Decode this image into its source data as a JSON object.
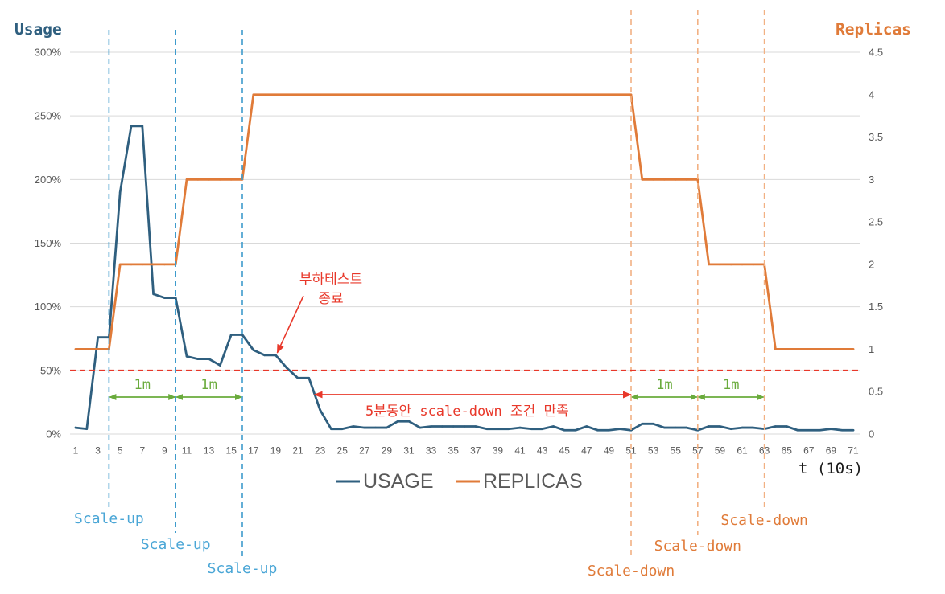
{
  "chart_data": {
    "type": "line",
    "grid": "horizontal",
    "legend": "bottom-center",
    "x_axis": {
      "label": "t (10s)",
      "range": [
        1,
        71
      ],
      "tick_labels": [
        "1",
        "3",
        "5",
        "7",
        "9",
        "11",
        "13",
        "15",
        "17",
        "19",
        "21",
        "23",
        "25",
        "27",
        "29",
        "31",
        "33",
        "35",
        "37",
        "39",
        "41",
        "43",
        "45",
        "47",
        "49",
        "51",
        "53",
        "55",
        "57",
        "59",
        "61",
        "63",
        "65",
        "67",
        "69",
        "71"
      ]
    },
    "left_axis": {
      "title": "Usage",
      "range": [
        0,
        300
      ],
      "tick_labels": [
        "0%",
        "50%",
        "100%",
        "150%",
        "200%",
        "250%",
        "300%"
      ],
      "color": "#2F5F7F"
    },
    "right_axis": {
      "title": "Replicas",
      "range": [
        0,
        4.5
      ],
      "tick_labels": [
        "0",
        "0.5",
        "1",
        "1.5",
        "2",
        "2.5",
        "3",
        "3.5",
        "4",
        "4.5"
      ],
      "color": "#E07B39"
    },
    "x": [
      1,
      2,
      3,
      4,
      5,
      6,
      7,
      8,
      9,
      10,
      11,
      12,
      13,
      14,
      15,
      16,
      17,
      18,
      19,
      20,
      21,
      22,
      23,
      24,
      25,
      26,
      27,
      28,
      29,
      30,
      31,
      32,
      33,
      34,
      35,
      36,
      37,
      38,
      39,
      40,
      41,
      42,
      43,
      44,
      45,
      46,
      47,
      48,
      49,
      50,
      51,
      52,
      53,
      54,
      55,
      56,
      57,
      58,
      59,
      60,
      61,
      62,
      63,
      64,
      65,
      66,
      67,
      68,
      69,
      70,
      71
    ],
    "series": [
      {
        "name": "USAGE",
        "axis": "left",
        "color": "#2F5F7F",
        "values": [
          5,
          4,
          76,
          76,
          190,
          242,
          242,
          110,
          107,
          107,
          61,
          59,
          59,
          54,
          78,
          78,
          66,
          62,
          62,
          52,
          44,
          44,
          19,
          4,
          4,
          6,
          5,
          5,
          5,
          10,
          10,
          5,
          6,
          6,
          6,
          6,
          6,
          4,
          4,
          4,
          5,
          4,
          4,
          6,
          3,
          3,
          6,
          3,
          3,
          4,
          3,
          8,
          8,
          5,
          5,
          5,
          3,
          6,
          6,
          4,
          5,
          5,
          4,
          6,
          6,
          3,
          3,
          3,
          4,
          3,
          3
        ]
      },
      {
        "name": "REPLICAS",
        "axis": "right",
        "color": "#E07B39",
        "values": [
          1,
          1,
          1,
          1,
          2,
          2,
          2,
          2,
          2,
          2,
          3,
          3,
          3,
          3,
          3,
          3,
          4,
          4,
          4,
          4,
          4,
          4,
          4,
          4,
          4,
          4,
          4,
          4,
          4,
          4,
          4,
          4,
          4,
          4,
          4,
          4,
          4,
          4,
          4,
          4,
          4,
          4,
          4,
          4,
          4,
          4,
          4,
          4,
          4,
          4,
          4,
          3,
          3,
          3,
          3,
          3,
          3,
          2,
          2,
          2,
          2,
          2,
          2,
          1,
          1,
          1,
          1,
          1,
          1,
          1,
          1
        ]
      }
    ],
    "threshold": {
      "axis": "left",
      "value": 50,
      "color": "#E8382A",
      "style": "dashed"
    },
    "events": [
      {
        "t": 4,
        "label": "Scale-up",
        "color": "#4AA6D6",
        "line_color": "#3E9BCC"
      },
      {
        "t": 10,
        "label": "Scale-up",
        "color": "#4AA6D6",
        "line_color": "#3E9BCC"
      },
      {
        "t": 16,
        "label": "Scale-up",
        "color": "#4AA6D6",
        "line_color": "#3E9BCC"
      },
      {
        "t": 51,
        "label": "Scale-down",
        "color": "#E07B39",
        "line_color": "#F2B183"
      },
      {
        "t": 57,
        "label": "Scale-down",
        "color": "#E07B39",
        "line_color": "#F2B183"
      },
      {
        "t": 63,
        "label": "Scale-down",
        "color": "#E07B39",
        "line_color": "#F2B183"
      }
    ],
    "spans": [
      {
        "from": 4,
        "to": 10,
        "label": "1m",
        "color": "#6AAB3C"
      },
      {
        "from": 10,
        "to": 16,
        "label": "1m",
        "color": "#6AAB3C"
      },
      {
        "from": 51,
        "to": 57,
        "label": "1m",
        "color": "#6AAB3C"
      },
      {
        "from": 57,
        "to": 63,
        "label": "1m",
        "color": "#6AAB3C"
      }
    ],
    "condition_span": {
      "from": 22.5,
      "to": 51,
      "label": "5분동안 scale-down 조건 만족",
      "color": "#E8382A"
    },
    "callout": {
      "lines": [
        "부하테스트",
        "종료"
      ],
      "points_to_t": 19,
      "color": "#E8382A"
    }
  }
}
